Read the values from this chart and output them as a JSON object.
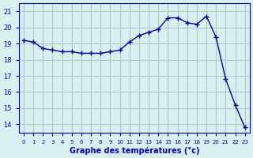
{
  "hours": [
    0,
    1,
    2,
    3,
    4,
    5,
    6,
    7,
    8,
    9,
    10,
    11,
    12,
    13,
    14,
    15,
    16,
    17,
    18,
    19,
    20,
    21,
    22,
    23
  ],
  "temps": [
    19.2,
    19.1,
    18.7,
    18.6,
    18.5,
    18.5,
    18.4,
    18.4,
    18.4,
    18.5,
    18.6,
    19.1,
    19.5,
    19.7,
    19.9,
    20.6,
    20.6,
    20.3,
    20.2,
    20.7,
    19.4,
    16.8,
    15.2,
    13.8
  ],
  "line_color": "#0000aa",
  "bg_color": "#d8f0f0",
  "grid_color": "#b0c8c8",
  "xlabel": "Graphe des températures (°c)",
  "xlabel_color": "#0000cc",
  "tick_color": "#0000cc",
  "ylim": [
    13.5,
    21.5
  ],
  "yticks": [
    14,
    15,
    16,
    17,
    18,
    19,
    20,
    21
  ]
}
